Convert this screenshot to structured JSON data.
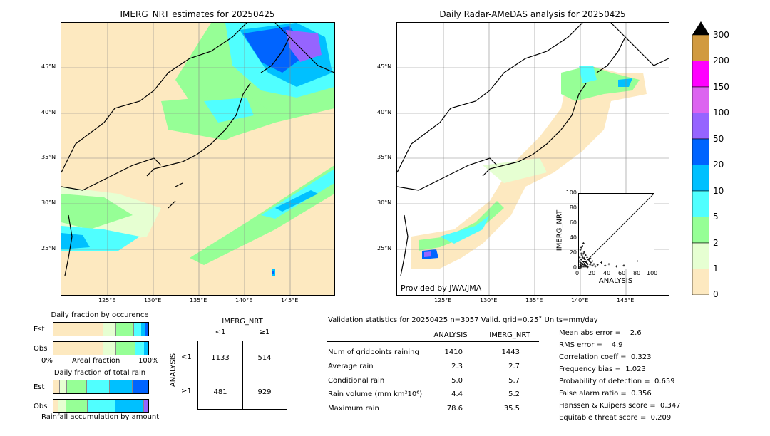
{
  "left_map": {
    "title": "IMERG_NRT estimates for 20250425"
  },
  "right_map": {
    "title": "Daily Radar-AMeDAS analysis for 20250425",
    "credit": "Provided by JWA/JMA"
  },
  "lat_labels": [
    "45°N",
    "40°N",
    "35°N",
    "30°N",
    "25°N"
  ],
  "lon_labels": [
    "125°E",
    "130°E",
    "135°E",
    "140°E",
    "145°E"
  ],
  "colorbar": {
    "ticks": [
      "300",
      "200",
      "150",
      "100",
      "50",
      "20",
      "10",
      "5",
      "2",
      "1",
      "0"
    ],
    "colors": [
      "#d19a40",
      "#ff00ff",
      "#dc64f0",
      "#9664ff",
      "#0064ff",
      "#00c0ff",
      "#50ffff",
      "#96ff96",
      "#e6ffd2",
      "#fde9c0"
    ]
  },
  "occurrence": {
    "title": "Daily fraction by occurence",
    "est_label": "Est",
    "obs_label": "Obs",
    "axis_left": "0%",
    "axis_mid": "Areal fraction",
    "axis_right": "100%"
  },
  "total_rain": {
    "title": "Daily fraction of total rain",
    "est_label": "Est",
    "obs_label": "Obs",
    "footer": "Rainfall accumulation by amount"
  },
  "contingency": {
    "header": "IMERG_NRT",
    "col_lt": "<1",
    "col_ge": "≥1",
    "row_title": "ANALYSIS",
    "row_lt": "<1",
    "row_ge": "≥1",
    "a": "1133",
    "b": "514",
    "c": "481",
    "d": "929"
  },
  "stats": {
    "header": "Validation statistics for 20250425  n=3057 Valid. grid=0.25˚ Units=mm/day",
    "col_analysis": "ANALYSIS",
    "col_imerg": "IMERG_NRT",
    "rows": [
      {
        "label": "Num of gridpoints raining",
        "analysis": "1410",
        "imerg": "1443"
      },
      {
        "label": "Average rain",
        "analysis": "2.3",
        "imerg": "2.7"
      },
      {
        "label": "Conditional rain",
        "analysis": "5.0",
        "imerg": "5.7"
      },
      {
        "label": "Rain volume (mm km²10⁶)",
        "analysis": "4.4",
        "imerg": "5.2"
      },
      {
        "label": "Maximum rain",
        "analysis": "78.6",
        "imerg": "35.5"
      }
    ],
    "scores": [
      "Mean abs error =    2.6",
      "RMS error =    4.9",
      "Correlation coeff =  0.323",
      "Frequency bias =  1.023",
      "Probability of detection =  0.659",
      "False alarm ratio =  0.356",
      "Hanssen & Kuipers score =  0.347",
      "Equitable threat score =  0.209"
    ]
  },
  "chart_data": {
    "type": "scatter",
    "xlabel": "ANALYSIS",
    "ylabel": "IMERG_NRT",
    "xlim": [
      0,
      100
    ],
    "ylim": [
      0,
      100
    ],
    "ticks": [
      "0",
      "20",
      "40",
      "60",
      "80",
      "100"
    ],
    "points": [
      [
        1,
        2
      ],
      [
        2,
        1
      ],
      [
        3,
        4
      ],
      [
        4,
        2
      ],
      [
        5,
        6
      ],
      [
        6,
        3
      ],
      [
        2,
        8
      ],
      [
        7,
        5
      ],
      [
        8,
        9
      ],
      [
        3,
        12
      ],
      [
        5,
        15
      ],
      [
        9,
        4
      ],
      [
        10,
        8
      ],
      [
        4,
        18
      ],
      [
        6,
        20
      ],
      [
        2,
        25
      ],
      [
        3,
        28
      ],
      [
        8,
        12
      ],
      [
        12,
        6
      ],
      [
        14,
        10
      ],
      [
        11,
        15
      ],
      [
        15,
        5
      ],
      [
        7,
        22
      ],
      [
        9,
        18
      ],
      [
        1,
        10
      ],
      [
        5,
        30
      ],
      [
        6,
        34
      ],
      [
        10,
        3
      ],
      [
        13,
        12
      ],
      [
        16,
        8
      ],
      [
        18,
        4
      ],
      [
        20,
        6
      ],
      [
        22,
        3
      ],
      [
        25,
        5
      ],
      [
        30,
        8
      ],
      [
        35,
        4
      ],
      [
        40,
        6
      ],
      [
        50,
        3
      ],
      [
        60,
        4
      ],
      [
        78,
        10
      ],
      [
        2,
        5
      ],
      [
        4,
        7
      ],
      [
        6,
        9
      ],
      [
        8,
        2
      ],
      [
        1,
        15
      ],
      [
        3,
        20
      ],
      [
        7,
        14
      ],
      [
        12,
        2
      ],
      [
        15,
        14
      ],
      [
        18,
        10
      ]
    ]
  }
}
